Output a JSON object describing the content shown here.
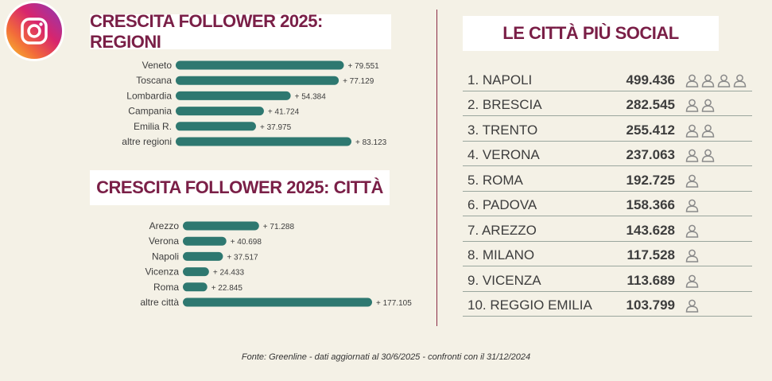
{
  "titles": {
    "regioni": "CRESCITA FOLLOWER 2025: REGIONI",
    "citta": "CRESCITA FOLLOWER 2025: CITTÀ",
    "social": "LE CITTÀ PIÙ SOCIAL"
  },
  "footnote": "Fonte: Greenline - dati aggiornati al 30/6/2025 - confronti con il 31/12/2024",
  "colors": {
    "bar": "#2e7870",
    "title": "#7a1f47",
    "divider": "#8a2b45",
    "background": "#f4f1e6"
  },
  "icons": {
    "logo": "instagram-icon",
    "person": "person-icon"
  },
  "chart_data": [
    {
      "type": "bar",
      "orientation": "horizontal",
      "title": "CRESCITA FOLLOWER 2025: REGIONI",
      "categories": [
        "Veneto",
        "Toscana",
        "Lombardia",
        "Campania",
        "Emilia R.",
        "altre regioni"
      ],
      "values": [
        79551,
        77129,
        54384,
        41724,
        37975,
        83123
      ],
      "labels": [
        "+ 79.551",
        "+ 77.129",
        "+ 54.384",
        "+ 41.724",
        "+ 37.975",
        "+ 83.123"
      ]
    },
    {
      "type": "bar",
      "orientation": "horizontal",
      "title": "CRESCITA FOLLOWER 2025: CITTÀ",
      "categories": [
        "Arezzo",
        "Verona",
        "Napoli",
        "Vicenza",
        "Roma",
        "altre città"
      ],
      "values": [
        71288,
        40698,
        37517,
        24433,
        22845,
        177105
      ],
      "labels": [
        "+ 71.288",
        "+ 40.698",
        "+ 37.517",
        "+ 24.433",
        "+ 22.845",
        "+ 177.105"
      ]
    },
    {
      "type": "table",
      "title": "LE CITTÀ PIÙ SOCIAL",
      "rows": [
        {
          "name": "1. NAPOLI",
          "value": "499.436",
          "icons": 4
        },
        {
          "name": "2. BRESCIA",
          "value": "282.545",
          "icons": 2
        },
        {
          "name": "3. TRENTO",
          "value": "255.412",
          "icons": 2
        },
        {
          "name": "4. VERONA",
          "value": "237.063",
          "icons": 2
        },
        {
          "name": "5. ROMA",
          "value": "192.725",
          "icons": 1
        },
        {
          "name": "6. PADOVA",
          "value": "158.366",
          "icons": 1
        },
        {
          "name": "7. AREZZO",
          "value": "143.628",
          "icons": 1
        },
        {
          "name": "8. MILANO",
          "value": "117.528",
          "icons": 1
        },
        {
          "name": "9. VICENZA",
          "value": "113.689",
          "icons": 1
        },
        {
          "name": "10. REGGIO EMILIA",
          "value": "103.799",
          "icons": 1
        }
      ]
    }
  ]
}
